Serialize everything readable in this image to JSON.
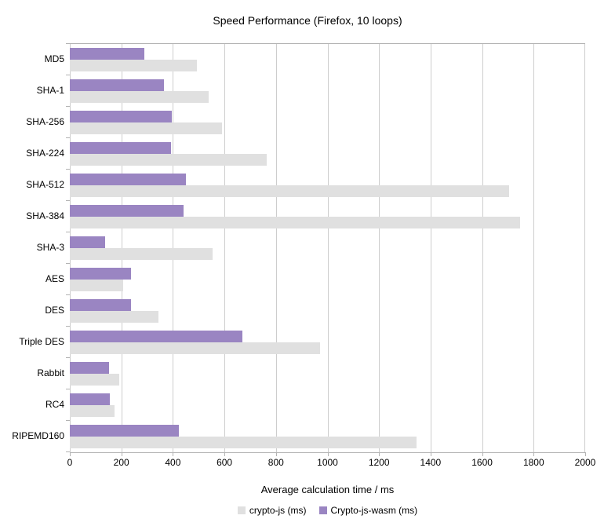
{
  "chart_data": {
    "type": "bar",
    "orientation": "horizontal",
    "title": "Speed Performance (Firefox, 10 loops)",
    "xlabel": "Average calculation time / ms",
    "categories": [
      "MD5",
      "SHA-1",
      "SHA-256",
      "SHA-224",
      "SHA-512",
      "SHA-384",
      "SHA-3",
      "AES",
      "DES",
      "Triple DES",
      "Rabbit",
      "RC4",
      "RIPEMD160"
    ],
    "series": [
      {
        "name": "crypto-js (ms)",
        "color": "#e0e0e0",
        "values": [
          493,
          538,
          590,
          765,
          1705,
          1747,
          553,
          208,
          345,
          970,
          193,
          175,
          1347
        ]
      },
      {
        "name": "Crypto-js-wasm (ms)",
        "color": "#9a85c2",
        "values": [
          290,
          364,
          396,
          394,
          452,
          441,
          137,
          238,
          237,
          670,
          153,
          156,
          423
        ]
      }
    ],
    "xlim": [
      0,
      2000
    ],
    "xticks": [
      0,
      200,
      400,
      600,
      800,
      1000,
      1200,
      1400,
      1600,
      1800,
      2000
    ],
    "grid": true,
    "legend_position": "bottom",
    "colors": {
      "gridline": "#cdcdcd",
      "axis": "#b3b3b3",
      "text": "#000000"
    }
  }
}
